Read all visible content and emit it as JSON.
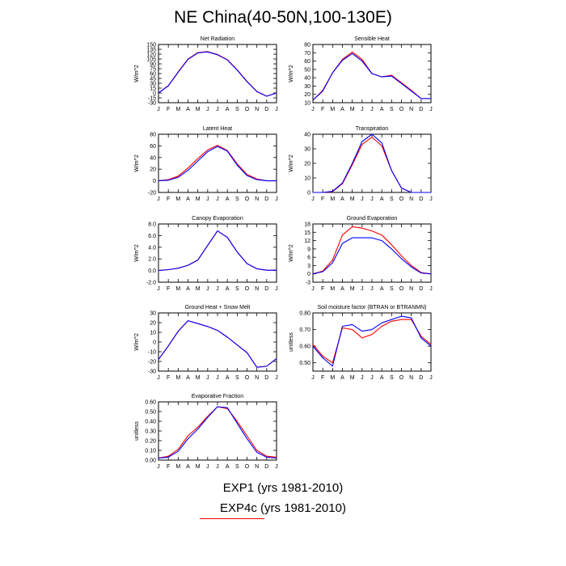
{
  "title": "NE China(40-50N,100-130E)",
  "months": [
    "J",
    "F",
    "M",
    "A",
    "M",
    "J",
    "J",
    "A",
    "S",
    "O",
    "N",
    "D",
    "J"
  ],
  "legend": {
    "exp1": "EXP1 (yrs 1981-2010)",
    "exp4c": "EXP4c (yrs 1981-2010)",
    "colors": {
      "exp1": "#0000ff",
      "exp4c": "#ff0000"
    }
  },
  "chart_data": [
    {
      "type": "line",
      "title": "Net Radiation",
      "ylabel": "W/m^2",
      "ylim": [
        -30,
        150
      ],
      "yticks": [
        -30,
        -15,
        0,
        15,
        30,
        45,
        60,
        75,
        90,
        105,
        120,
        135,
        150
      ],
      "yticklabels": [
        "-30",
        "-15",
        "0",
        "15",
        "30",
        "45",
        "60",
        "75",
        "90",
        "105",
        "120",
        "135",
        "150"
      ],
      "series": [
        {
          "key": "exp4c",
          "values": [
            0,
            23,
            65,
            105,
            125,
            128,
            119,
            103,
            72,
            36,
            5,
            -10,
            0
          ]
        },
        {
          "key": "exp1",
          "values": [
            0,
            22,
            64,
            104,
            124,
            127,
            118,
            102,
            71,
            35,
            4,
            -10,
            0
          ]
        }
      ]
    },
    {
      "type": "line",
      "title": "Sensible Heat",
      "ylabel": "W/m^2",
      "ylim": [
        10,
        80
      ],
      "yticks": [
        10,
        20,
        30,
        40,
        50,
        60,
        70,
        80
      ],
      "yticklabels": [
        "10",
        "20",
        "30",
        "40",
        "50",
        "60",
        "70",
        "80"
      ],
      "series": [
        {
          "key": "exp4c",
          "values": [
            13,
            25,
            46,
            62,
            71,
            62,
            45,
            41,
            43,
            34,
            25,
            15,
            15
          ]
        },
        {
          "key": "exp1",
          "values": [
            13,
            24,
            46,
            61,
            69,
            60,
            45,
            41,
            42,
            33,
            24,
            15,
            15
          ]
        }
      ]
    },
    {
      "type": "line",
      "title": "Latent Heat",
      "ylabel": "W/m^2",
      "ylim": [
        -20,
        80
      ],
      "yticks": [
        -20,
        0,
        20,
        40,
        60,
        80
      ],
      "yticklabels": [
        "-20",
        "0",
        "20",
        "40",
        "60",
        "80"
      ],
      "series": [
        {
          "key": "exp4c",
          "values": [
            0,
            2,
            8,
            22,
            38,
            53,
            61,
            52,
            29,
            11,
            3,
            0,
            0
          ]
        },
        {
          "key": "exp1",
          "values": [
            0,
            1,
            6,
            18,
            34,
            50,
            59,
            51,
            27,
            9,
            2,
            0,
            0
          ]
        }
      ]
    },
    {
      "type": "line",
      "title": "Transpiration",
      "ylabel": "W/m^2",
      "ylim": [
        0,
        40
      ],
      "yticks": [
        0,
        10,
        20,
        30,
        40
      ],
      "yticklabels": [
        "0",
        "10",
        "20",
        "30",
        "40"
      ],
      "series": [
        {
          "key": "exp4c",
          "values": [
            0,
            0,
            0.5,
            6,
            19,
            33,
            38,
            32,
            15,
            3,
            0,
            0,
            0
          ]
        },
        {
          "key": "exp1",
          "values": [
            0,
            0,
            0.8,
            6.5,
            20,
            35,
            40,
            34,
            15,
            3,
            0,
            0,
            0
          ]
        }
      ]
    },
    {
      "type": "line",
      "title": "Canopy Evaporation",
      "ylabel": "W/m^2",
      "ylim": [
        -2,
        8
      ],
      "yticks": [
        -2,
        0,
        2,
        4,
        6,
        8
      ],
      "yticklabels": [
        "-2.0",
        "0.0",
        "2.0",
        "4.0",
        "6.0",
        "8.0"
      ],
      "series": [
        {
          "key": "exp4c",
          "values": [
            0,
            0.15,
            0.4,
            0.9,
            1.8,
            4.3,
            6.8,
            5.7,
            3.2,
            1.2,
            0.3,
            0.05,
            0.05
          ]
        },
        {
          "key": "exp1",
          "values": [
            0,
            0.15,
            0.4,
            0.9,
            1.8,
            4.3,
            6.8,
            5.7,
            3.2,
            1.2,
            0.3,
            0.05,
            0.05
          ]
        }
      ]
    },
    {
      "type": "line",
      "title": "Ground Evaporation",
      "ylabel": "W/m^2",
      "ylim": [
        -3,
        18
      ],
      "yticks": [
        -3,
        0,
        3,
        6,
        9,
        12,
        15,
        18
      ],
      "yticklabels": [
        "-3",
        "0",
        "3",
        "6",
        "9",
        "12",
        "15",
        "18"
      ],
      "series": [
        {
          "key": "exp4c",
          "values": [
            0,
            1,
            5,
            14,
            17,
            16.5,
            15.5,
            14,
            10.5,
            6.5,
            3,
            0.5,
            0
          ]
        },
        {
          "key": "exp1",
          "values": [
            0,
            0.8,
            4,
            11,
            13,
            13,
            13,
            12,
            9,
            5.5,
            2.5,
            0.3,
            0
          ]
        }
      ]
    },
    {
      "type": "line",
      "title": "Ground Heat + Snow Melt",
      "ylabel": "W/m^2",
      "ylim": [
        -30,
        30
      ],
      "yticks": [
        -30,
        -20,
        -10,
        0,
        10,
        20,
        30
      ],
      "yticklabels": [
        "-30",
        "-20",
        "-10",
        "0",
        "10",
        "20",
        "30"
      ],
      "series": [
        {
          "key": "exp4c",
          "values": [
            -18,
            -4,
            11,
            22,
            19,
            16,
            12,
            5,
            -3,
            -11,
            -26,
            -25,
            -17
          ]
        },
        {
          "key": "exp1",
          "values": [
            -18,
            -4,
            11,
            22,
            19,
            16,
            12,
            5,
            -3,
            -11,
            -26,
            -25,
            -17
          ]
        }
      ]
    },
    {
      "type": "line",
      "title": "Soil moisture factor (BTRAN or BTRANMN)",
      "ylabel": "unitless",
      "ylim": [
        0.45,
        0.8
      ],
      "yticks": [
        0.5,
        0.6,
        0.7,
        0.8
      ],
      "yticklabels": [
        "0.50",
        "0.60",
        "0.70",
        "0.80"
      ],
      "series": [
        {
          "key": "exp4c",
          "values": [
            0.61,
            0.54,
            0.5,
            0.71,
            0.7,
            0.65,
            0.67,
            0.72,
            0.75,
            0.76,
            0.76,
            0.66,
            0.61
          ]
        },
        {
          "key": "exp1",
          "values": [
            0.6,
            0.53,
            0.48,
            0.72,
            0.73,
            0.69,
            0.7,
            0.74,
            0.76,
            0.78,
            0.77,
            0.65,
            0.6
          ]
        }
      ]
    },
    {
      "type": "line",
      "title": "Evaporative Fraction",
      "ylabel": "unitless",
      "ylim": [
        0,
        0.6
      ],
      "yticks": [
        0,
        0.1,
        0.2,
        0.3,
        0.4,
        0.5,
        0.6
      ],
      "yticklabels": [
        "0.00",
        "0.10",
        "0.20",
        "0.30",
        "0.40",
        "0.50",
        "0.60"
      ],
      "series": [
        {
          "key": "exp4c",
          "values": [
            0.02,
            0.04,
            0.11,
            0.25,
            0.34,
            0.45,
            0.55,
            0.53,
            0.4,
            0.25,
            0.1,
            0.04,
            0.03
          ]
        },
        {
          "key": "exp1",
          "values": [
            0.02,
            0.03,
            0.09,
            0.22,
            0.32,
            0.44,
            0.55,
            0.54,
            0.38,
            0.22,
            0.08,
            0.03,
            0.02
          ]
        }
      ]
    }
  ]
}
